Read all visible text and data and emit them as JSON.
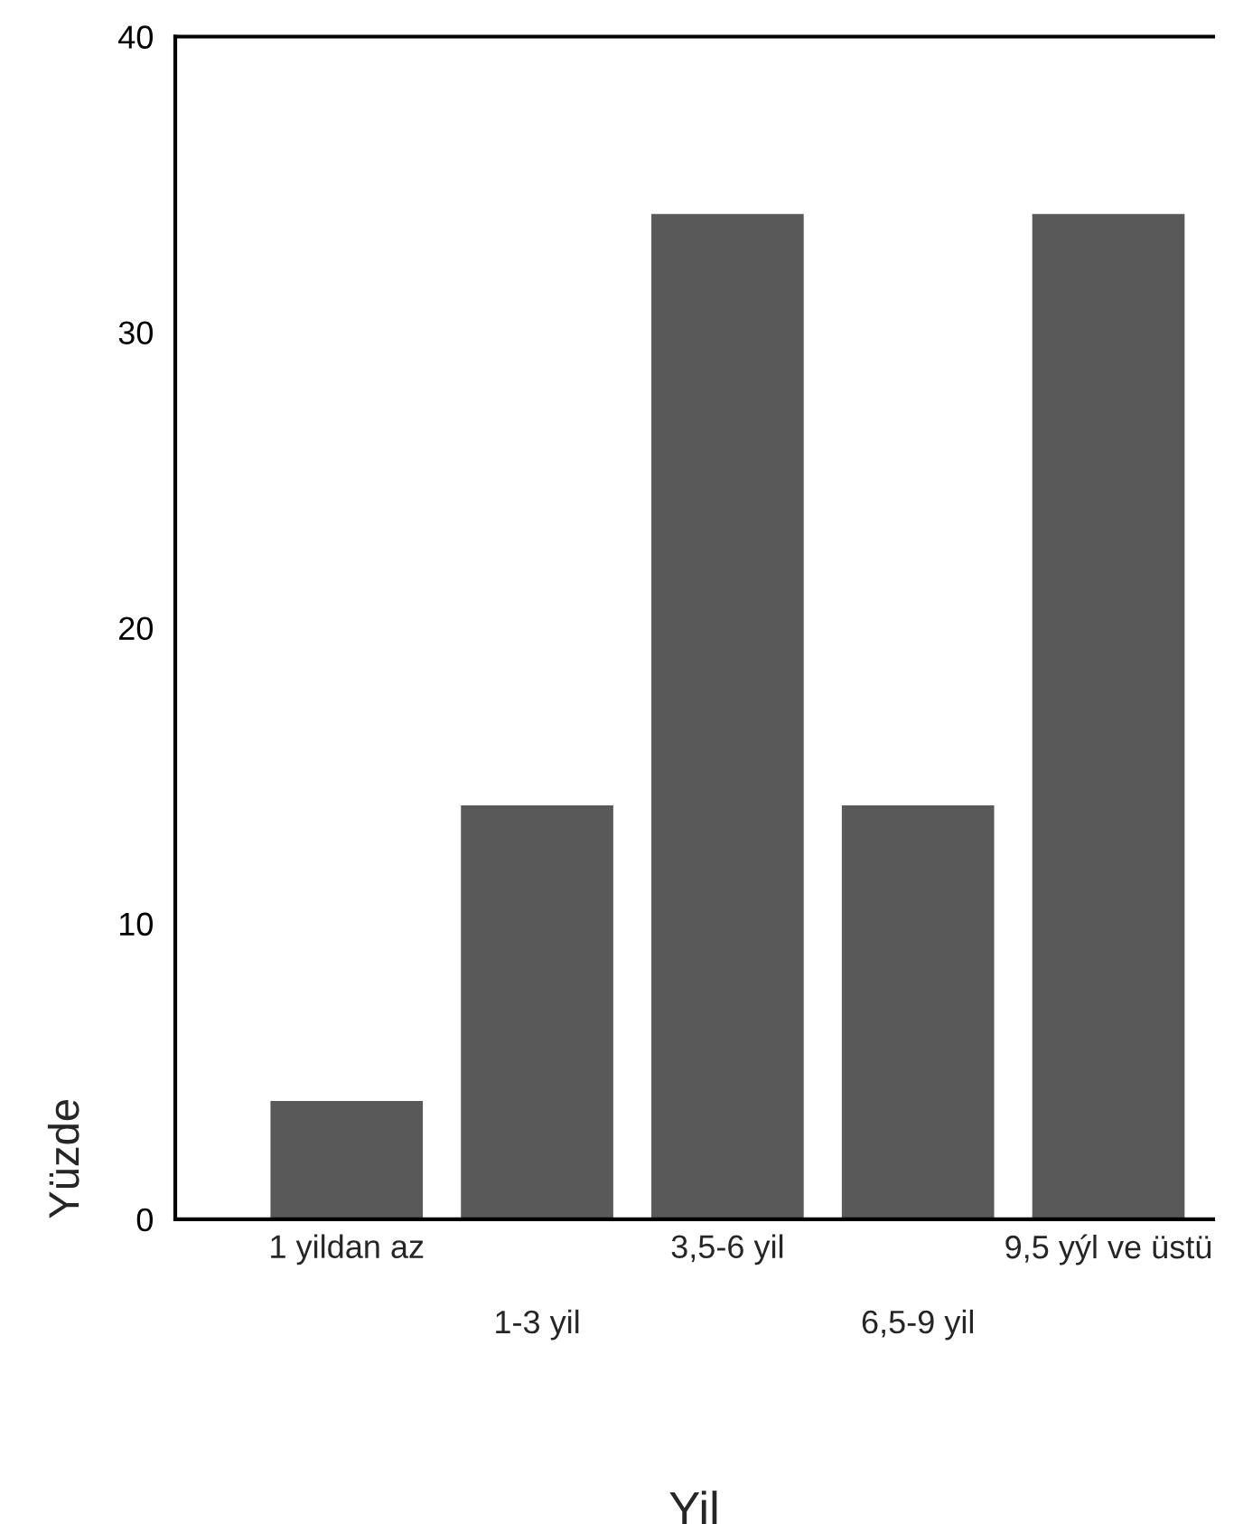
{
  "chart_data": {
    "type": "bar",
    "xlabel": "Yil",
    "ylabel": "Yüzde",
    "categories": [
      "1 yildan az",
      "1-3 yil",
      "3,5-6 yil",
      "6,5-9 yil",
      "9,5 yýl ve üstü"
    ],
    "values": [
      4,
      14,
      34,
      14,
      34
    ],
    "color": "#595959",
    "ylim": [
      0,
      40
    ],
    "yticks": [
      0,
      10,
      20,
      30,
      40
    ],
    "grid": false,
    "legend": false
  }
}
